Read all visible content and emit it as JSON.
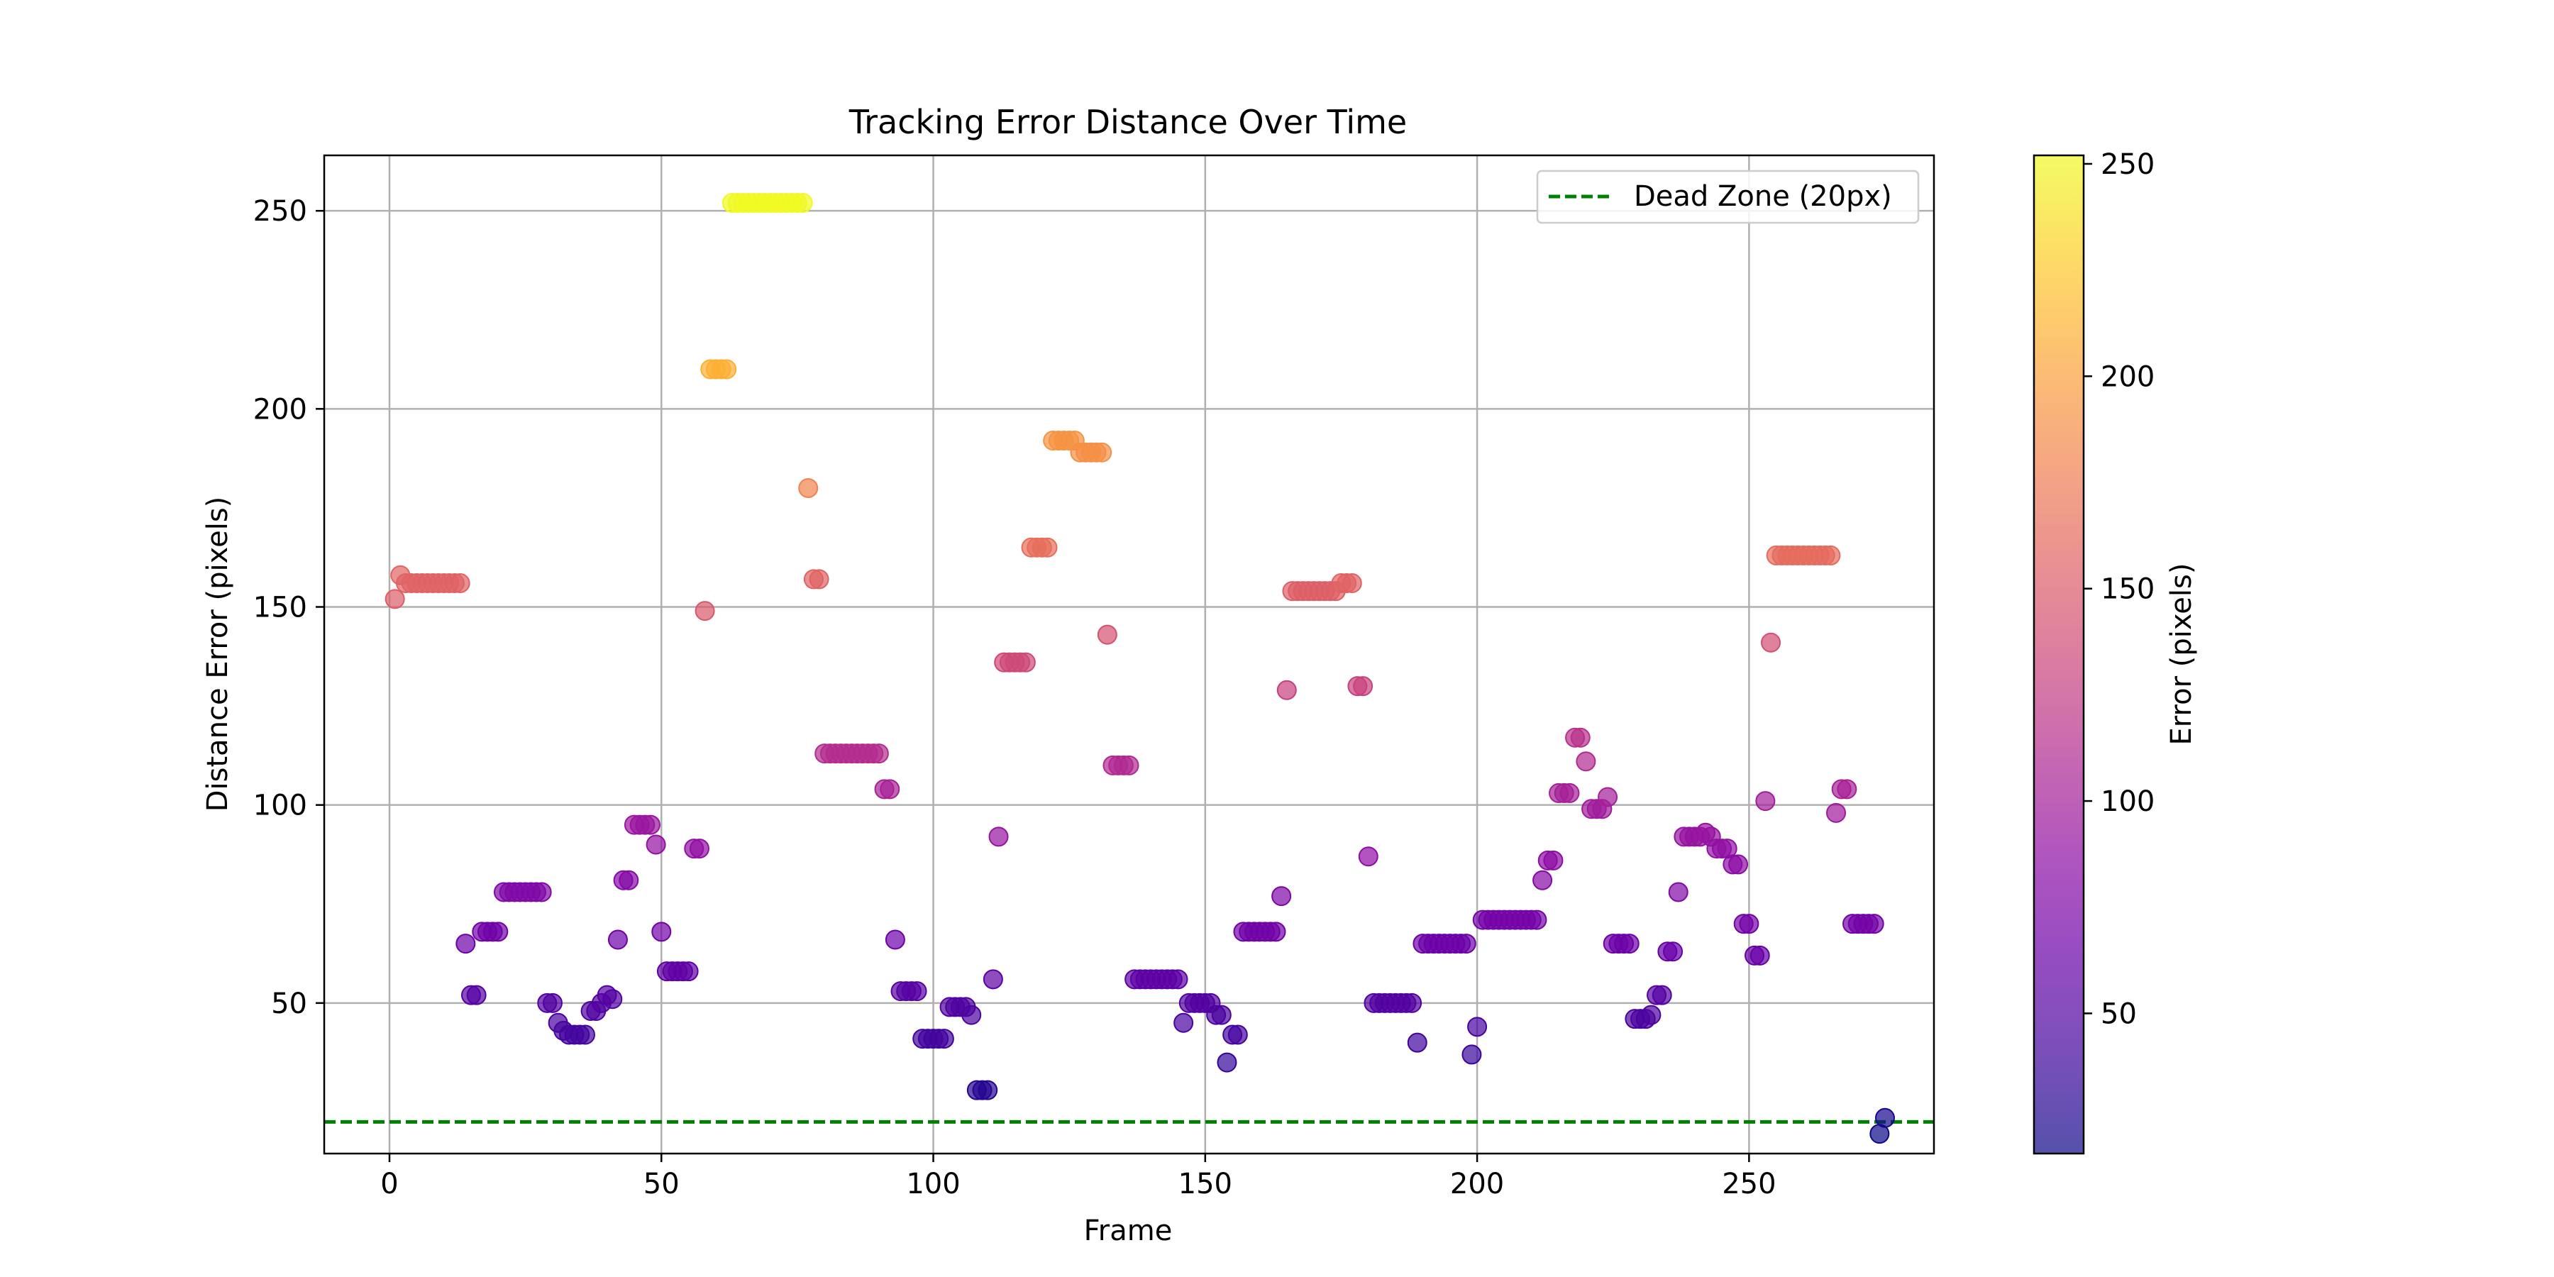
{
  "chart_data": {
    "type": "scatter",
    "title": "Tracking Error Distance Over Time",
    "xlabel": "Frame",
    "ylabel": "Distance Error (pixels)",
    "xlim": [
      -12,
      284
    ],
    "ylim": [
      12,
      264
    ],
    "xticks": [
      0,
      50,
      100,
      150,
      200,
      250
    ],
    "yticks": [
      50,
      100,
      150,
      200,
      250
    ],
    "grid": true,
    "legend_position": "top-right",
    "dead_zone": {
      "y": 20,
      "label": "Dead Zone (20px)",
      "color": "#008000",
      "style": "dashed"
    },
    "colorbar": {
      "label": "Error (pixels)",
      "colormap": "plasma",
      "range": [
        17,
        252
      ],
      "ticks": [
        50,
        100,
        150,
        200,
        250
      ]
    },
    "points": [
      [
        1,
        152
      ],
      [
        2,
        158
      ],
      [
        3,
        156
      ],
      [
        4,
        156
      ],
      [
        5,
        156
      ],
      [
        6,
        156
      ],
      [
        7,
        156
      ],
      [
        8,
        156
      ],
      [
        9,
        156
      ],
      [
        10,
        156
      ],
      [
        11,
        156
      ],
      [
        12,
        156
      ],
      [
        13,
        156
      ],
      [
        14,
        65
      ],
      [
        15,
        52
      ],
      [
        16,
        52
      ],
      [
        17,
        68
      ],
      [
        18,
        68
      ],
      [
        19,
        68
      ],
      [
        20,
        68
      ],
      [
        21,
        78
      ],
      [
        22,
        78
      ],
      [
        23,
        78
      ],
      [
        24,
        78
      ],
      [
        25,
        78
      ],
      [
        26,
        78
      ],
      [
        27,
        78
      ],
      [
        28,
        78
      ],
      [
        29,
        50
      ],
      [
        30,
        50
      ],
      [
        31,
        45
      ],
      [
        32,
        43
      ],
      [
        33,
        42
      ],
      [
        34,
        42
      ],
      [
        35,
        42
      ],
      [
        36,
        42
      ],
      [
        37,
        48
      ],
      [
        38,
        48
      ],
      [
        39,
        50
      ],
      [
        40,
        52
      ],
      [
        41,
        51
      ],
      [
        42,
        66
      ],
      [
        43,
        81
      ],
      [
        44,
        81
      ],
      [
        45,
        95
      ],
      [
        46,
        95
      ],
      [
        47,
        95
      ],
      [
        48,
        95
      ],
      [
        49,
        90
      ],
      [
        50,
        68
      ],
      [
        51,
        58
      ],
      [
        52,
        58
      ],
      [
        53,
        58
      ],
      [
        54,
        58
      ],
      [
        55,
        58
      ],
      [
        56,
        89
      ],
      [
        57,
        89
      ],
      [
        58,
        149
      ],
      [
        59,
        210
      ],
      [
        60,
        210
      ],
      [
        61,
        210
      ],
      [
        62,
        210
      ],
      [
        63,
        252
      ],
      [
        64,
        252
      ],
      [
        65,
        252
      ],
      [
        66,
        252
      ],
      [
        67,
        252
      ],
      [
        68,
        252
      ],
      [
        69,
        252
      ],
      [
        70,
        252
      ],
      [
        71,
        252
      ],
      [
        72,
        252
      ],
      [
        73,
        252
      ],
      [
        74,
        252
      ],
      [
        75,
        252
      ],
      [
        76,
        252
      ],
      [
        77,
        180
      ],
      [
        78,
        157
      ],
      [
        79,
        157
      ],
      [
        80,
        113
      ],
      [
        81,
        113
      ],
      [
        82,
        113
      ],
      [
        83,
        113
      ],
      [
        84,
        113
      ],
      [
        85,
        113
      ],
      [
        86,
        113
      ],
      [
        87,
        113
      ],
      [
        88,
        113
      ],
      [
        89,
        113
      ],
      [
        90,
        113
      ],
      [
        91,
        104
      ],
      [
        92,
        104
      ],
      [
        93,
        66
      ],
      [
        94,
        53
      ],
      [
        95,
        53
      ],
      [
        96,
        53
      ],
      [
        97,
        53
      ],
      [
        98,
        41
      ],
      [
        99,
        41
      ],
      [
        100,
        41
      ],
      [
        101,
        41
      ],
      [
        102,
        41
      ],
      [
        103,
        49
      ],
      [
        104,
        49
      ],
      [
        105,
        49
      ],
      [
        106,
        49
      ],
      [
        107,
        47
      ],
      [
        108,
        28
      ],
      [
        109,
        28
      ],
      [
        110,
        28
      ],
      [
        111,
        56
      ],
      [
        112,
        92
      ],
      [
        113,
        136
      ],
      [
        114,
        136
      ],
      [
        115,
        136
      ],
      [
        116,
        136
      ],
      [
        117,
        136
      ],
      [
        118,
        165
      ],
      [
        119,
        165
      ],
      [
        120,
        165
      ],
      [
        121,
        165
      ],
      [
        122,
        192
      ],
      [
        123,
        192
      ],
      [
        124,
        192
      ],
      [
        125,
        192
      ],
      [
        126,
        192
      ],
      [
        127,
        189
      ],
      [
        128,
        189
      ],
      [
        129,
        189
      ],
      [
        130,
        189
      ],
      [
        131,
        189
      ],
      [
        132,
        143
      ],
      [
        133,
        110
      ],
      [
        134,
        110
      ],
      [
        135,
        110
      ],
      [
        136,
        110
      ],
      [
        137,
        56
      ],
      [
        138,
        56
      ],
      [
        139,
        56
      ],
      [
        140,
        56
      ],
      [
        141,
        56
      ],
      [
        142,
        56
      ],
      [
        143,
        56
      ],
      [
        144,
        56
      ],
      [
        145,
        56
      ],
      [
        146,
        45
      ],
      [
        147,
        50
      ],
      [
        148,
        50
      ],
      [
        149,
        50
      ],
      [
        150,
        50
      ],
      [
        151,
        50
      ],
      [
        152,
        47
      ],
      [
        153,
        47
      ],
      [
        154,
        35
      ],
      [
        155,
        42
      ],
      [
        156,
        42
      ],
      [
        157,
        68
      ],
      [
        158,
        68
      ],
      [
        159,
        68
      ],
      [
        160,
        68
      ],
      [
        161,
        68
      ],
      [
        162,
        68
      ],
      [
        163,
        68
      ],
      [
        164,
        77
      ],
      [
        165,
        129
      ],
      [
        166,
        154
      ],
      [
        167,
        154
      ],
      [
        168,
        154
      ],
      [
        169,
        154
      ],
      [
        170,
        154
      ],
      [
        171,
        154
      ],
      [
        172,
        154
      ],
      [
        173,
        154
      ],
      [
        174,
        154
      ],
      [
        175,
        156
      ],
      [
        176,
        156
      ],
      [
        177,
        156
      ],
      [
        178,
        130
      ],
      [
        179,
        130
      ],
      [
        180,
        87
      ],
      [
        181,
        50
      ],
      [
        182,
        50
      ],
      [
        183,
        50
      ],
      [
        184,
        50
      ],
      [
        185,
        50
      ],
      [
        186,
        50
      ],
      [
        187,
        50
      ],
      [
        188,
        50
      ],
      [
        189,
        40
      ],
      [
        190,
        65
      ],
      [
        191,
        65
      ],
      [
        192,
        65
      ],
      [
        193,
        65
      ],
      [
        194,
        65
      ],
      [
        195,
        65
      ],
      [
        196,
        65
      ],
      [
        197,
        65
      ],
      [
        198,
        65
      ],
      [
        199,
        37
      ],
      [
        200,
        44
      ],
      [
        201,
        71
      ],
      [
        202,
        71
      ],
      [
        203,
        71
      ],
      [
        204,
        71
      ],
      [
        205,
        71
      ],
      [
        206,
        71
      ],
      [
        207,
        71
      ],
      [
        208,
        71
      ],
      [
        209,
        71
      ],
      [
        210,
        71
      ],
      [
        211,
        71
      ],
      [
        212,
        81
      ],
      [
        213,
        86
      ],
      [
        214,
        86
      ],
      [
        215,
        103
      ],
      [
        216,
        103
      ],
      [
        217,
        103
      ],
      [
        218,
        117
      ],
      [
        219,
        117
      ],
      [
        220,
        111
      ],
      [
        221,
        99
      ],
      [
        222,
        99
      ],
      [
        223,
        99
      ],
      [
        224,
        102
      ],
      [
        225,
        65
      ],
      [
        226,
        65
      ],
      [
        227,
        65
      ],
      [
        228,
        65
      ],
      [
        229,
        46
      ],
      [
        230,
        46
      ],
      [
        231,
        46
      ],
      [
        232,
        47
      ],
      [
        233,
        52
      ],
      [
        234,
        52
      ],
      [
        235,
        63
      ],
      [
        236,
        63
      ],
      [
        237,
        78
      ],
      [
        238,
        92
      ],
      [
        239,
        92
      ],
      [
        240,
        92
      ],
      [
        241,
        92
      ],
      [
        242,
        93
      ],
      [
        243,
        92
      ],
      [
        244,
        89
      ],
      [
        245,
        89
      ],
      [
        246,
        89
      ],
      [
        247,
        85
      ],
      [
        248,
        85
      ],
      [
        249,
        70
      ],
      [
        250,
        70
      ],
      [
        251,
        62
      ],
      [
        252,
        62
      ],
      [
        253,
        101
      ],
      [
        254,
        141
      ],
      [
        255,
        163
      ],
      [
        256,
        163
      ],
      [
        257,
        163
      ],
      [
        258,
        163
      ],
      [
        259,
        163
      ],
      [
        260,
        163
      ],
      [
        261,
        163
      ],
      [
        262,
        163
      ],
      [
        263,
        163
      ],
      [
        264,
        163
      ],
      [
        265,
        163
      ],
      [
        266,
        98
      ],
      [
        267,
        104
      ],
      [
        268,
        104
      ],
      [
        269,
        70
      ],
      [
        270,
        70
      ],
      [
        271,
        70
      ],
      [
        272,
        70
      ],
      [
        273,
        70
      ],
      [
        274,
        17
      ],
      [
        275,
        21
      ]
    ]
  }
}
